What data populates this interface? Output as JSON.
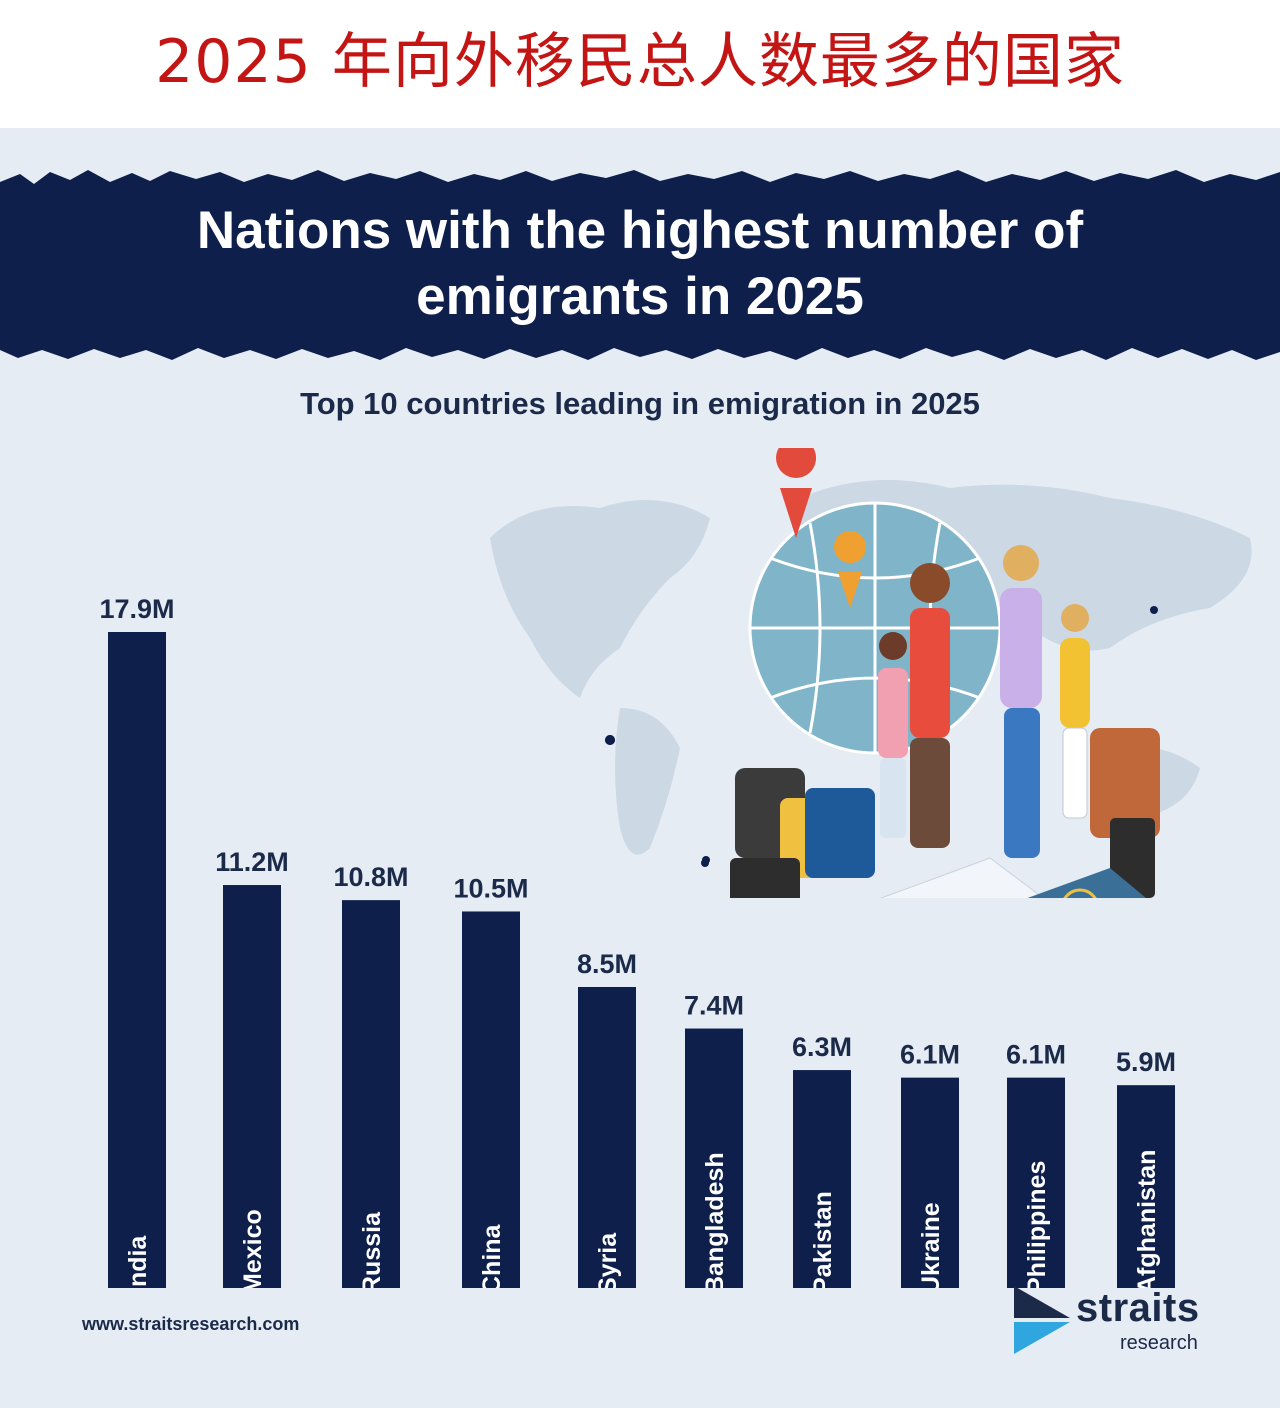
{
  "header": {
    "chinese_title": "2025 年向外移民总人数最多的国家"
  },
  "banner": {
    "title": "Nations with the highest number of\nemigrants in 2025"
  },
  "chart_data": {
    "type": "bar",
    "title": "Top 10 countries leading in emigration in 2025",
    "categories": [
      "India",
      "Mexico",
      "Russia",
      "China",
      "Syria",
      "Bangladesh",
      "Pakistan",
      "Ukraine",
      "Philippines",
      "Afghanistan"
    ],
    "values": [
      17.9,
      11.2,
      10.8,
      10.5,
      8.5,
      7.4,
      6.3,
      6.1,
      6.1,
      5.9
    ],
    "value_labels": [
      "17.9M",
      "11.2M",
      "10.8M",
      "10.5M",
      "8.5M",
      "7.4M",
      "6.3M",
      "6.1M",
      "6.1M",
      "5.9M"
    ],
    "unit": "M",
    "ylim": [
      0,
      17.9
    ],
    "xlabel": "",
    "ylabel": "",
    "grid": false,
    "bar_color": "#0d1f4a"
  },
  "colors": {
    "navy": "#0d1f4a",
    "panel_bg": "#e5ecf4",
    "title_red": "#c41515"
  },
  "footer": {
    "website": "www.straitsresearch.com"
  },
  "logo": {
    "name": "straits",
    "sub": "research"
  }
}
